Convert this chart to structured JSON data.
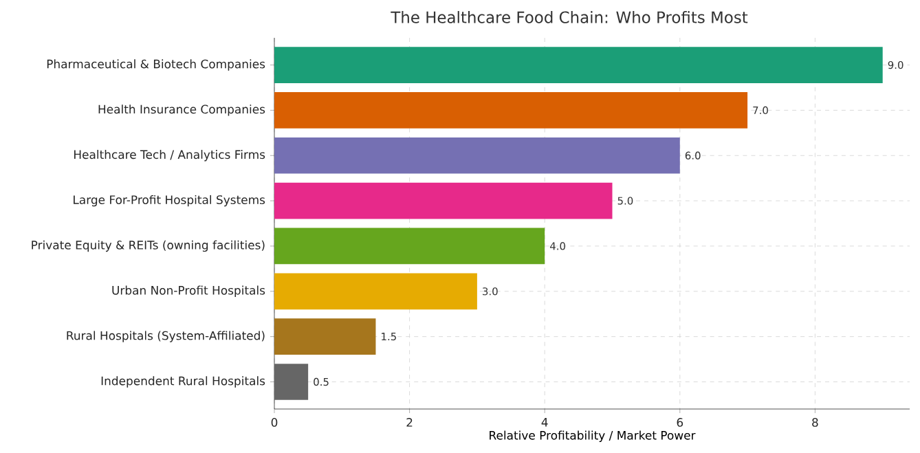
{
  "chart_data": {
    "type": "bar",
    "orientation": "horizontal",
    "title": "The Healthcare Food Chain: Who Profits Most",
    "xlabel": "Relative Profitability / Market Power",
    "categories": [
      "Pharmaceutical & Biotech Companies",
      "Health Insurance Companies",
      "Healthcare Tech / Analytics Firms",
      "Large For-Profit Hospital Systems",
      "Private Equity & REITs (owning facilities)",
      "Urban Non-Profit Hospitals",
      "Rural Hospitals (System-Affiliated)",
      "Independent Rural Hospitals"
    ],
    "values": [
      9,
      7,
      6,
      5,
      4,
      3,
      1.5,
      0.5
    ],
    "value_labels": [
      "9.0",
      "7.0",
      "6.0",
      "5.0",
      "4.0",
      "3.0",
      "1.5",
      "0.5"
    ],
    "colors": [
      "#1b9e77",
      "#d95f02",
      "#7570b3",
      "#e7298a",
      "#66a61e",
      "#e6ab02",
      "#a6761d",
      "#666666"
    ],
    "xlim": [
      0,
      9.4
    ],
    "xticks": [
      0,
      2,
      4,
      6,
      8
    ],
    "grid": true
  }
}
